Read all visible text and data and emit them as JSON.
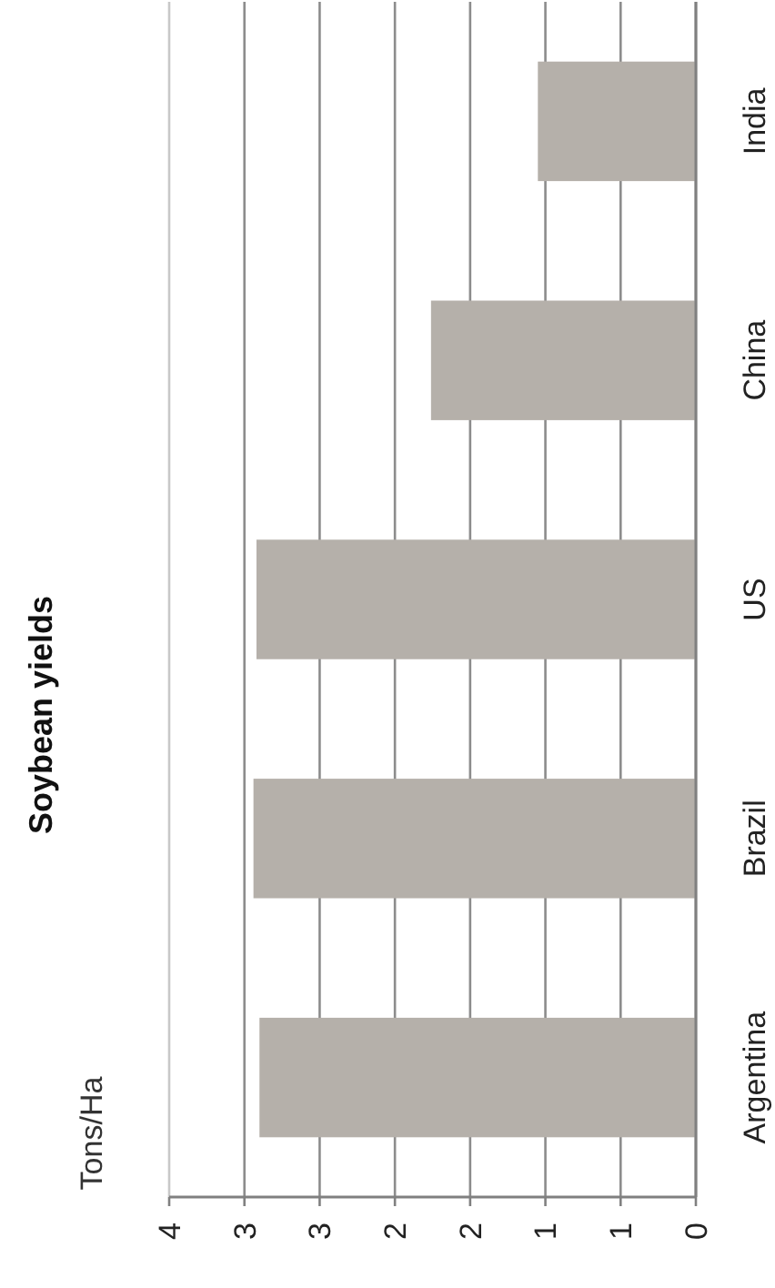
{
  "chart_data": {
    "type": "bar",
    "orientation": "horizontal",
    "title": "Soybean yields",
    "annotations": [
      "Tons/Ha"
    ],
    "categories": [
      "India",
      "China",
      "US",
      "Brazil",
      "Argentina"
    ],
    "values": [
      1.05,
      1.76,
      2.92,
      2.94,
      2.9
    ],
    "color": "#b5b0aa",
    "xlim": [
      3.5,
      0
    ],
    "xticks": [
      {
        "value": 3.5,
        "label": "4"
      },
      {
        "value": 3,
        "label": "3"
      },
      {
        "value": 2.5,
        "label": "3"
      },
      {
        "value": 2,
        "label": "2"
      },
      {
        "value": 1.5,
        "label": "2"
      },
      {
        "value": 1,
        "label": "1"
      },
      {
        "value": 0.5,
        "label": "1"
      },
      {
        "value": 0,
        "label": "0"
      }
    ],
    "grid": "x"
  }
}
